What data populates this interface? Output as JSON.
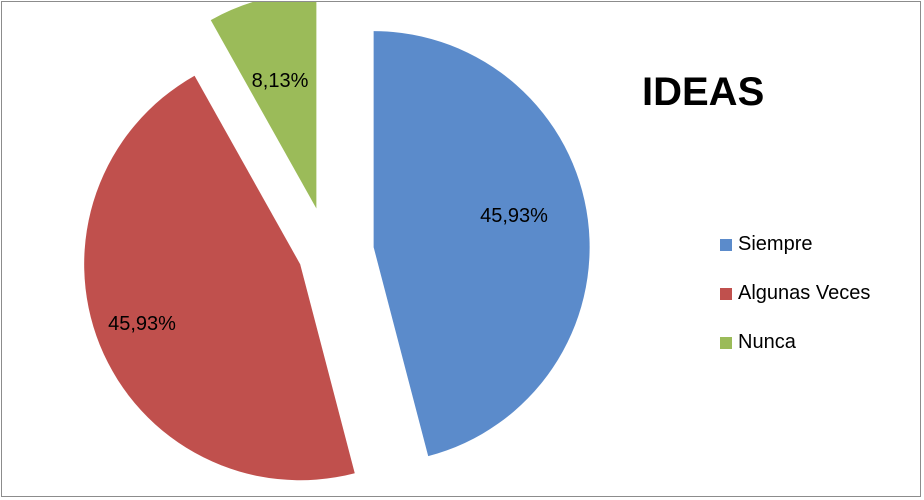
{
  "chart_data": {
    "type": "pie",
    "title": "IDEAS",
    "categories": [
      "Siempre",
      "Algunas Veces",
      "Nunca"
    ],
    "values": [
      45.93,
      45.93,
      8.13
    ],
    "labels": [
      "45,93%",
      "45,93%",
      "8,13%"
    ],
    "colors": [
      "#5B8BCB",
      "#C0504D",
      "#9BBB59"
    ],
    "exploded": true,
    "legend_position": "right"
  }
}
